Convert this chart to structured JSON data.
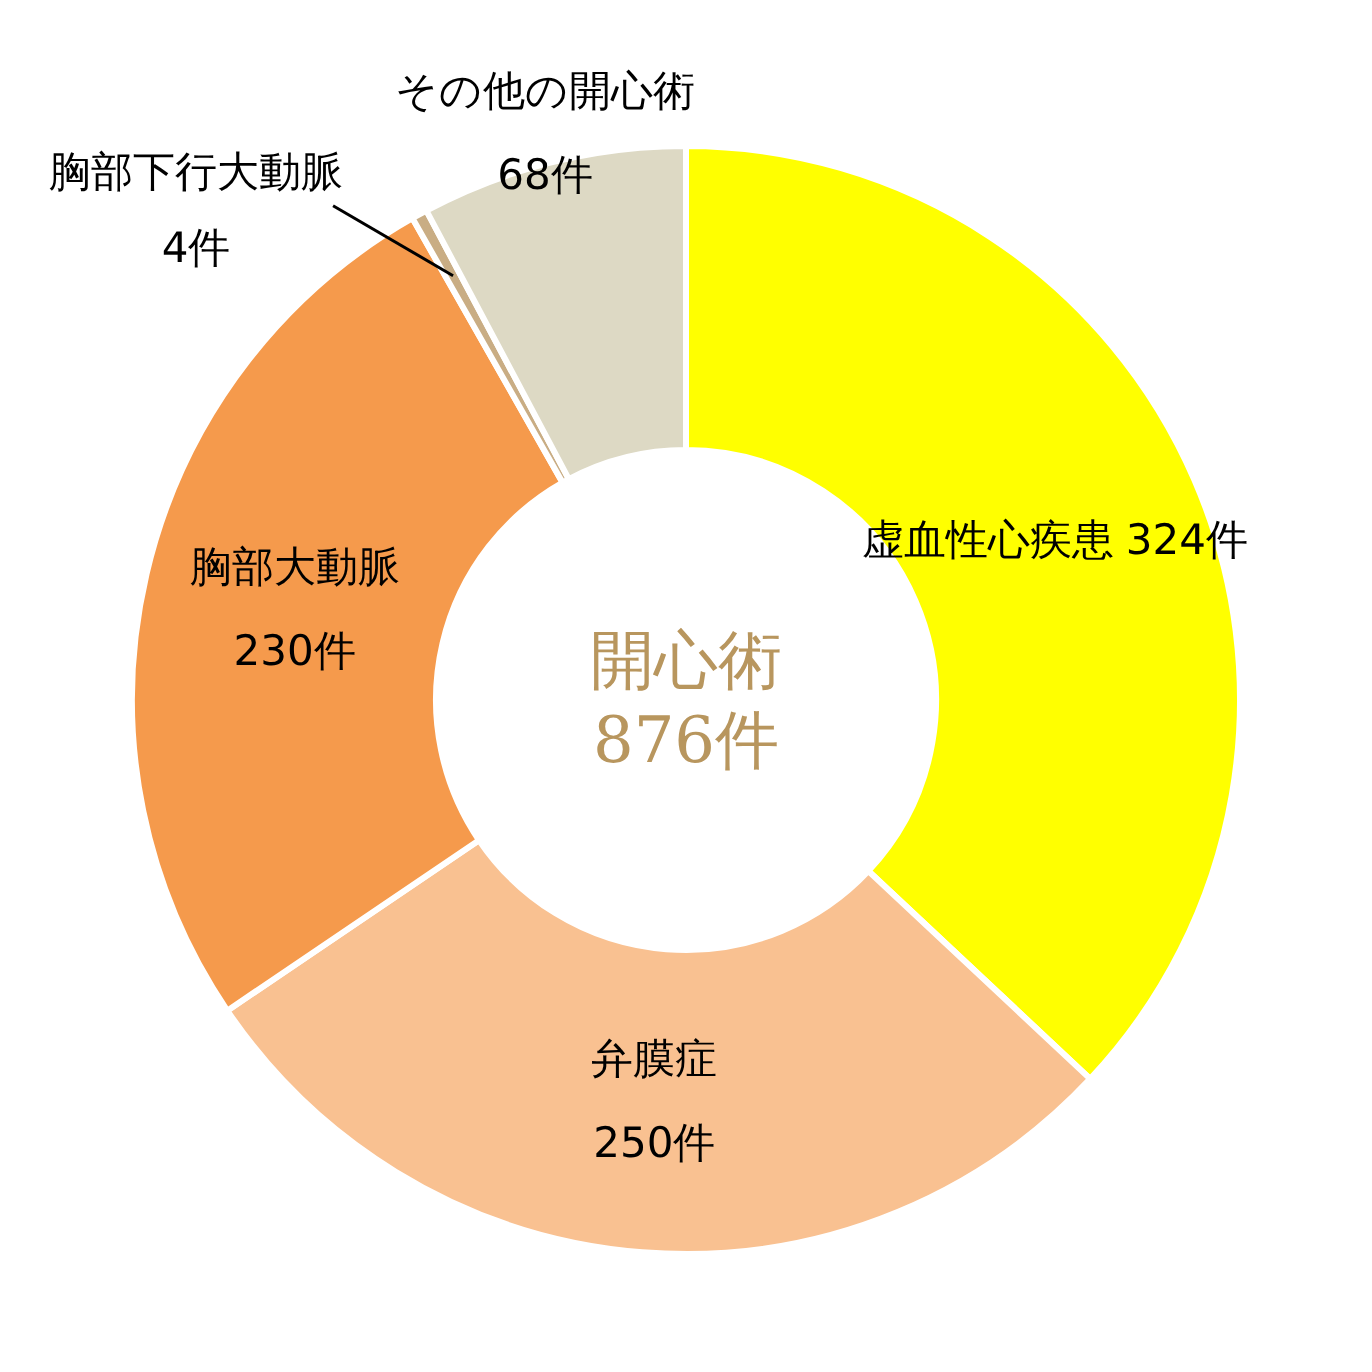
{
  "chart_data": {
    "type": "donut",
    "title": "開心術",
    "annotations": [
      "876件"
    ],
    "categories": [
      "虚血性心疾患",
      "弁膜症",
      "胸部大動脈",
      "胸部下行大動脈",
      "その他の開心術"
    ],
    "values": [
      324,
      250,
      230,
      4,
      68
    ],
    "colors": [
      "#ffff00",
      "#f9c191",
      "#f59a4c",
      "#c9ad84",
      "#ddd9c4"
    ],
    "value_labels": [
      "324件",
      "250件",
      "230件",
      "4件",
      "68件"
    ]
  }
}
